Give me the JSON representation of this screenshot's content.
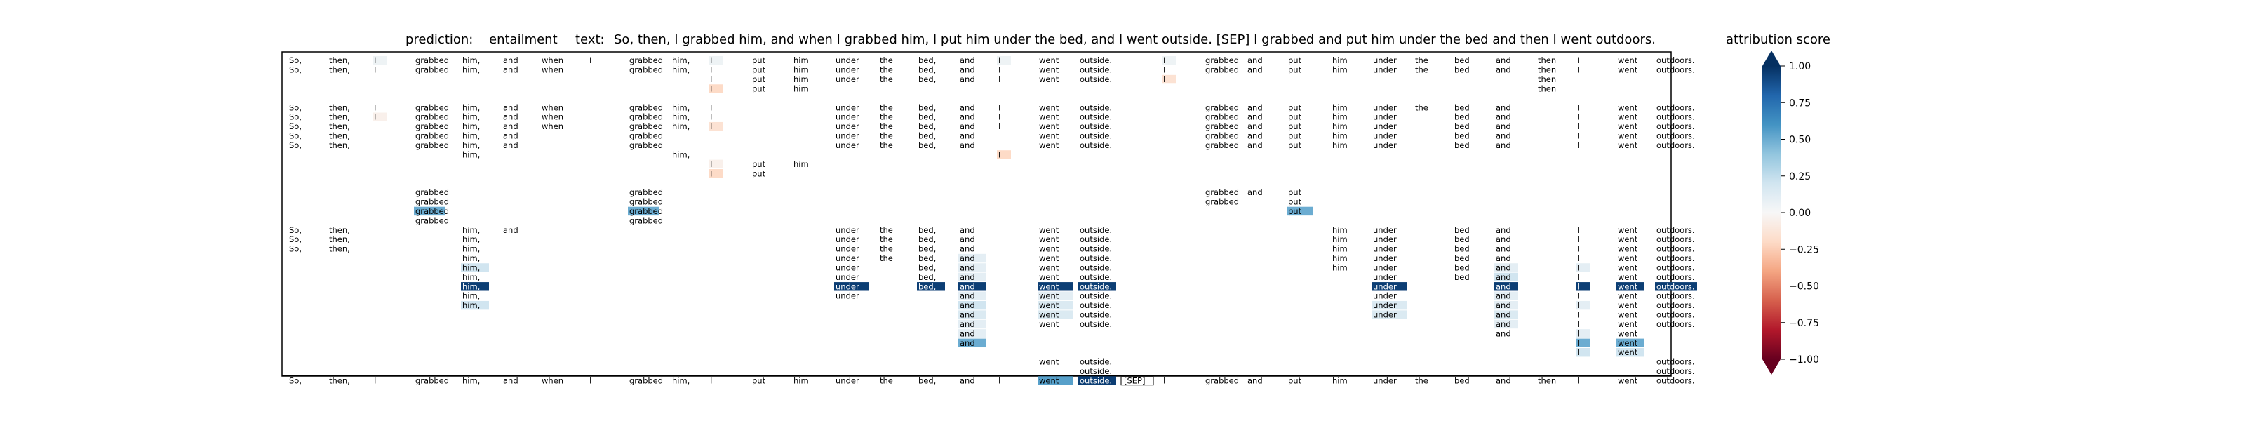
{
  "header": {
    "prediction_label": "prediction:",
    "prediction_value": "entailment",
    "text_label": "text:",
    "text_value": "So, then, I grabbed him, and when I grabbed him, I put him under the bed, and I went outside. [SEP] I grabbed and put him under the bed and then I went outdoors."
  },
  "colorbar": {
    "title": "attribution score",
    "ticks": [
      "1.00",
      "0.75",
      "0.50",
      "0.25",
      "0.00",
      "−0.25",
      "−0.50",
      "−0.75",
      "−1.00"
    ]
  },
  "chart_data": {
    "type": "heatmap",
    "tokens": [
      "So,",
      "then,",
      "I",
      "grabbed",
      "him,",
      "and",
      "when",
      "I",
      "grabbed",
      "him,",
      "I",
      "put",
      "him",
      "under",
      "the",
      "bed,",
      "and",
      "I",
      "went",
      "outside.",
      "[SEP]",
      "I",
      "grabbed",
      "and",
      "put",
      "him",
      "under",
      "the",
      "bed",
      "and",
      "then",
      "I",
      "went",
      "outdoors."
    ],
    "score_range": [
      -1,
      1
    ],
    "rows": [
      {
        "tokens": [
          0,
          1,
          2,
          3,
          4,
          5,
          6,
          7,
          8,
          9,
          10,
          11,
          12,
          13,
          14,
          15,
          16,
          17,
          18,
          19,
          21,
          22,
          23,
          24,
          25,
          26,
          27,
          28,
          29,
          30,
          31,
          32,
          33
        ],
        "scores": {
          "2": 0.05,
          "10": 0.05,
          "17": 0.05,
          "21": 0.05
        }
      },
      {
        "tokens": [
          0,
          1,
          2,
          3,
          4,
          5,
          6,
          8,
          9,
          10,
          11,
          12,
          13,
          14,
          15,
          16,
          17,
          18,
          19,
          21,
          22,
          23,
          24,
          25,
          26,
          27,
          28,
          29,
          30,
          31,
          32,
          33
        ],
        "scores": {}
      },
      {
        "tokens": [
          10,
          11,
          12,
          13,
          14,
          15,
          16,
          17,
          18,
          19,
          21,
          30
        ],
        "scores": {
          "21": -0.15
        }
      },
      {
        "tokens": [
          10,
          11,
          12,
          30
        ],
        "scores": {
          "10": -0.2
        }
      },
      {
        "tokens": [],
        "scores": {}
      },
      {
        "tokens": [
          0,
          1,
          2,
          3,
          4,
          5,
          6,
          8,
          9,
          10,
          13,
          14,
          15,
          16,
          17,
          18,
          19,
          22,
          23,
          24,
          25,
          26,
          27,
          28,
          29,
          31,
          32,
          33
        ],
        "scores": {}
      },
      {
        "tokens": [
          0,
          1,
          2,
          3,
          4,
          5,
          6,
          8,
          9,
          10,
          13,
          14,
          15,
          16,
          17,
          18,
          19,
          22,
          23,
          24,
          25,
          26,
          28,
          29,
          31,
          32,
          33
        ],
        "scores": {
          "2": -0.05
        }
      },
      {
        "tokens": [
          0,
          1,
          3,
          4,
          5,
          6,
          8,
          9,
          10,
          13,
          14,
          15,
          16,
          17,
          18,
          19,
          22,
          23,
          24,
          25,
          26,
          28,
          29,
          31,
          32,
          33
        ],
        "scores": {
          "10": -0.15
        }
      },
      {
        "tokens": [
          0,
          1,
          3,
          4,
          5,
          8,
          13,
          14,
          15,
          16,
          18,
          19,
          22,
          23,
          24,
          25,
          26,
          28,
          29,
          31,
          32,
          33
        ],
        "scores": {}
      },
      {
        "tokens": [
          0,
          1,
          3,
          4,
          5,
          8,
          13,
          14,
          15,
          16,
          18,
          19,
          22,
          23,
          24,
          25,
          26,
          28,
          29,
          31,
          32,
          33
        ],
        "scores": {}
      },
      {
        "tokens": [
          4,
          9,
          17
        ],
        "scores": {
          "17": -0.2
        }
      },
      {
        "tokens": [
          10,
          11,
          12
        ],
        "scores": {
          "10": -0.05
        }
      },
      {
        "tokens": [
          10,
          11
        ],
        "scores": {
          "10": -0.2
        }
      },
      {
        "tokens": [],
        "scores": {}
      },
      {
        "tokens": [
          3,
          8,
          22,
          23,
          24
        ],
        "scores": {}
      },
      {
        "tokens": [
          3,
          8,
          22,
          24
        ],
        "scores": {}
      },
      {
        "tokens": [
          3,
          8,
          24
        ],
        "scores": {
          "3": 0.5,
          "8": 0.5,
          "24": 0.5
        }
      },
      {
        "tokens": [
          3,
          8
        ],
        "scores": {}
      },
      {
        "tokens": [
          0,
          1,
          4,
          5,
          13,
          14,
          15,
          16,
          18,
          19,
          25,
          26,
          28,
          29,
          31,
          32,
          33
        ],
        "scores": {}
      },
      {
        "tokens": [
          0,
          1,
          4,
          13,
          14,
          15,
          16,
          18,
          19,
          25,
          26,
          28,
          29,
          31,
          32,
          33
        ],
        "scores": {}
      },
      {
        "tokens": [
          0,
          1,
          4,
          13,
          14,
          15,
          16,
          18,
          19,
          25,
          26,
          28,
          29,
          31,
          32,
          33
        ],
        "scores": {}
      },
      {
        "tokens": [
          4,
          13,
          14,
          15,
          16,
          18,
          19,
          25,
          26,
          28,
          29,
          31,
          32,
          33
        ],
        "scores": {
          "16": 0.1
        }
      },
      {
        "tokens": [
          4,
          13,
          15,
          16,
          18,
          19,
          25,
          26,
          28,
          29,
          31,
          32,
          33
        ],
        "scores": {
          "4": 0.2,
          "16": 0.1,
          "29": 0.1,
          "31": 0.1
        }
      },
      {
        "tokens": [
          4,
          13,
          15,
          16,
          18,
          19,
          26,
          28,
          29,
          31,
          32,
          33
        ],
        "scores": {
          "16": 0.1,
          "29": 0.2
        }
      },
      {
        "tokens": [
          4,
          13,
          15,
          16,
          18,
          19,
          26,
          29,
          31,
          32,
          33
        ],
        "scores": {
          "4": 0.95,
          "13": 0.95,
          "15": 0.95,
          "16": 0.95,
          "18": 0.95,
          "19": 0.95,
          "26": 0.95,
          "29": 0.95,
          "31": 0.95,
          "32": 0.95,
          "33": 0.95
        }
      },
      {
        "tokens": [
          4,
          13,
          16,
          18,
          19,
          26,
          29,
          31,
          32,
          33
        ],
        "scores": {
          "16": 0.1,
          "18": 0.1,
          "29": 0.1
        }
      },
      {
        "tokens": [
          4,
          16,
          18,
          19,
          26,
          29,
          31,
          32,
          33
        ],
        "scores": {
          "4": 0.2,
          "16": 0.2,
          "18": 0.15,
          "26": 0.15,
          "29": 0.1,
          "31": 0.1
        }
      },
      {
        "tokens": [
          16,
          18,
          19,
          26,
          29,
          31,
          32,
          33
        ],
        "scores": {
          "16": 0.15,
          "18": 0.15,
          "26": 0.15,
          "29": 0.15
        }
      },
      {
        "tokens": [
          16,
          18,
          19,
          29,
          31,
          32,
          33
        ],
        "scores": {
          "16": 0.1,
          "29": 0.1
        }
      },
      {
        "tokens": [
          16,
          29,
          31,
          32
        ],
        "scores": {
          "16": 0.1,
          "31": 0.1
        }
      },
      {
        "tokens": [
          16,
          31,
          32
        ],
        "scores": {
          "16": 0.5,
          "31": 0.5,
          "32": 0.5
        }
      },
      {
        "tokens": [
          31,
          32
        ],
        "scores": {
          "31": 0.2,
          "32": 0.2
        }
      },
      {
        "tokens": [
          18,
          19,
          33
        ],
        "scores": {}
      },
      {
        "tokens": [
          19,
          33
        ],
        "scores": {}
      },
      {
        "tokens": [
          0,
          1,
          2,
          3,
          4,
          5,
          6,
          7,
          8,
          9,
          10,
          11,
          12,
          13,
          14,
          15,
          16,
          17,
          18,
          19,
          20,
          21,
          22,
          23,
          24,
          25,
          26,
          27,
          28,
          29,
          30,
          31,
          32,
          33
        ],
        "scores": {
          "18": 0.55,
          "19": 0.95
        }
      }
    ]
  }
}
